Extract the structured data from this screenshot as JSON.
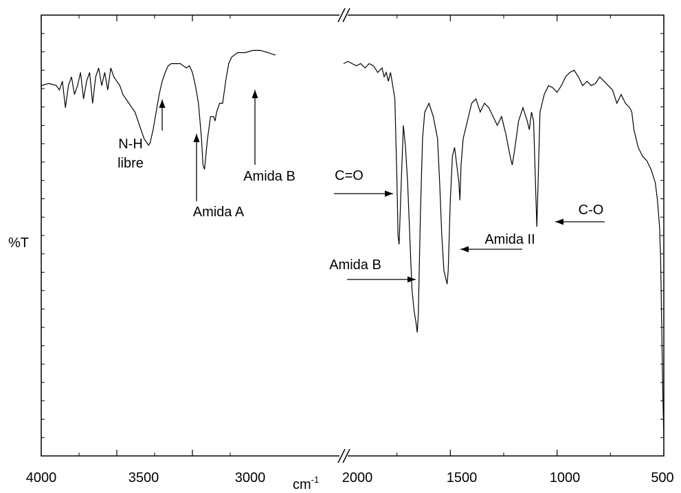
{
  "chart_data": {
    "type": "line",
    "title": "",
    "xlabel": "cm",
    "xlabel_superscript": "-1",
    "ylabel": "%T",
    "x_reversed": true,
    "axis_break": true,
    "xlim_left_segment": [
      4000,
      2000
    ],
    "xlim_right_segment": [
      2000,
      500
    ],
    "x_tick_labels": [
      "4000",
      "3500",
      "3000",
      "2000",
      "2000",
      "1500",
      "1000",
      "500"
    ],
    "grid": false,
    "legend": "none",
    "line_color": "#000000",
    "series": [
      {
        "x": [
          4000,
          3950,
          3900,
          3880,
          3860,
          3840,
          3820,
          3800,
          3780,
          3760,
          3740,
          3720,
          3700,
          3680,
          3660,
          3640,
          3620,
          3600,
          3580,
          3560,
          3540,
          3520,
          3500,
          3480,
          3460,
          3440,
          3420,
          3400,
          3380,
          3360,
          3340,
          3320,
          3300,
          3290,
          3280,
          3260,
          3240,
          3220,
          3200,
          3180,
          3160,
          3140,
          3120,
          3100,
          3080,
          3060,
          3040,
          3020,
          3000,
          2980,
          2960,
          2940,
          2930,
          2920,
          2900,
          2880,
          2860,
          2850,
          2840,
          2820,
          2800,
          2780,
          2760,
          2740,
          2720,
          2700,
          2650,
          2600,
          2550,
          2500,
          2460,
          2450
        ],
        "y": [
          84,
          84.5,
          84,
          83,
          85,
          79,
          84,
          86,
          82,
          84,
          87,
          81,
          85,
          87,
          80,
          86,
          88,
          84,
          87,
          83,
          88,
          86,
          85,
          84,
          82,
          81,
          80,
          79,
          78,
          76,
          74,
          72,
          71,
          70.5,
          71,
          74,
          78,
          82,
          85,
          87,
          88.5,
          89,
          89,
          89,
          89,
          88.5,
          88,
          88.5,
          87,
          84,
          80,
          72,
          66,
          65,
          72,
          77,
          77,
          76,
          78,
          80,
          80,
          85,
          89,
          90.5,
          91,
          91.5,
          91.5,
          92,
          92,
          91.5,
          91,
          91
        ]
      },
      {
        "x": [
          2000,
          1980,
          1960,
          1940,
          1920,
          1900,
          1880,
          1860,
          1840,
          1820,
          1810,
          1800,
          1790,
          1780,
          1770,
          1760,
          1750,
          1745,
          1740,
          1730,
          1720,
          1710,
          1700,
          1690,
          1680,
          1670,
          1660,
          1655,
          1650,
          1640,
          1630,
          1620,
          1600,
          1580,
          1560,
          1550,
          1540,
          1530,
          1520,
          1515,
          1510,
          1500,
          1490,
          1480,
          1470,
          1460,
          1455,
          1450,
          1440,
          1420,
          1400,
          1380,
          1360,
          1340,
          1320,
          1300,
          1280,
          1260,
          1240,
          1220,
          1210,
          1200,
          1180,
          1160,
          1140,
          1130,
          1120,
          1110,
          1100,
          1095,
          1090,
          1080,
          1060,
          1040,
          1020,
          1000,
          980,
          960,
          940,
          920,
          900,
          880,
          860,
          840,
          820,
          800,
          780,
          760,
          740,
          720,
          700,
          680,
          660,
          650,
          640,
          620,
          600,
          580,
          560,
          540,
          530,
          520,
          515,
          510,
          505,
          500
        ],
        "y": [
          89,
          89.5,
          89,
          88.5,
          89,
          88,
          89,
          88.5,
          87,
          88,
          86,
          87,
          85,
          87,
          84,
          81,
          62,
          50,
          48,
          62,
          75,
          70,
          62,
          50,
          38,
          33,
          30,
          28,
          32,
          55,
          72,
          78,
          80,
          77,
          72,
          62,
          50,
          42,
          40,
          39,
          42,
          58,
          68,
          70,
          66,
          62,
          58,
          66,
          72,
          76,
          80,
          81,
          78,
          80,
          79,
          77,
          75,
          77,
          73,
          68,
          66,
          69,
          76,
          79,
          76,
          74,
          78,
          76,
          60,
          52,
          60,
          78,
          82,
          84,
          83.5,
          82.5,
          84,
          86,
          87,
          87.5,
          86,
          84,
          85,
          84,
          84.5,
          86,
          85,
          84,
          83,
          80,
          82,
          80,
          79,
          78,
          74,
          70,
          68,
          67,
          65,
          62,
          58,
          52,
          45,
          30,
          15,
          4
        ]
      }
    ],
    "annotations": [
      {
        "lines": [
          "N-H",
          "libre"
        ]
      },
      {
        "lines": [
          "Amida A"
        ]
      },
      {
        "lines": [
          "Amida B"
        ]
      },
      {
        "lines": [
          "C=O"
        ]
      },
      {
        "lines": [
          "Amida B"
        ]
      },
      {
        "lines": [
          "Amida II"
        ]
      },
      {
        "lines": [
          "C-O"
        ]
      }
    ]
  }
}
